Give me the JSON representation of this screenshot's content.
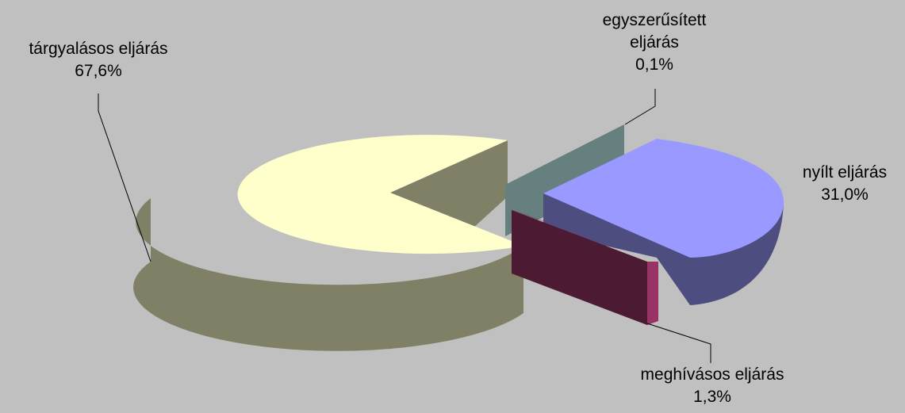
{
  "chart_data": {
    "type": "pie",
    "style": "3d-exploded",
    "title": "",
    "slices": [
      {
        "label": "tárgyalásos eljárás",
        "value": 67.6,
        "value_label": "67,6%",
        "color": "#ffffcc",
        "side_color": "#808066"
      },
      {
        "label": "egyszerűsített eljárás",
        "label_lines": [
          "egyszerűsített",
          "eljárás"
        ],
        "value": 0.1,
        "value_label": "0,1%",
        "color": "#8fb5b2",
        "side_color": "#668080"
      },
      {
        "label": "nyílt eljárás",
        "value": 31.0,
        "value_label": "31,0%",
        "color": "#9999ff",
        "side_color": "#4d4d80"
      },
      {
        "label": "meghívásos eljárás",
        "value": 1.3,
        "value_label": "1,3%",
        "color": "#993366",
        "side_color": "#4d1a33"
      }
    ]
  },
  "colors": {
    "background": "#c0c0c0",
    "leader_line": "#000000"
  }
}
